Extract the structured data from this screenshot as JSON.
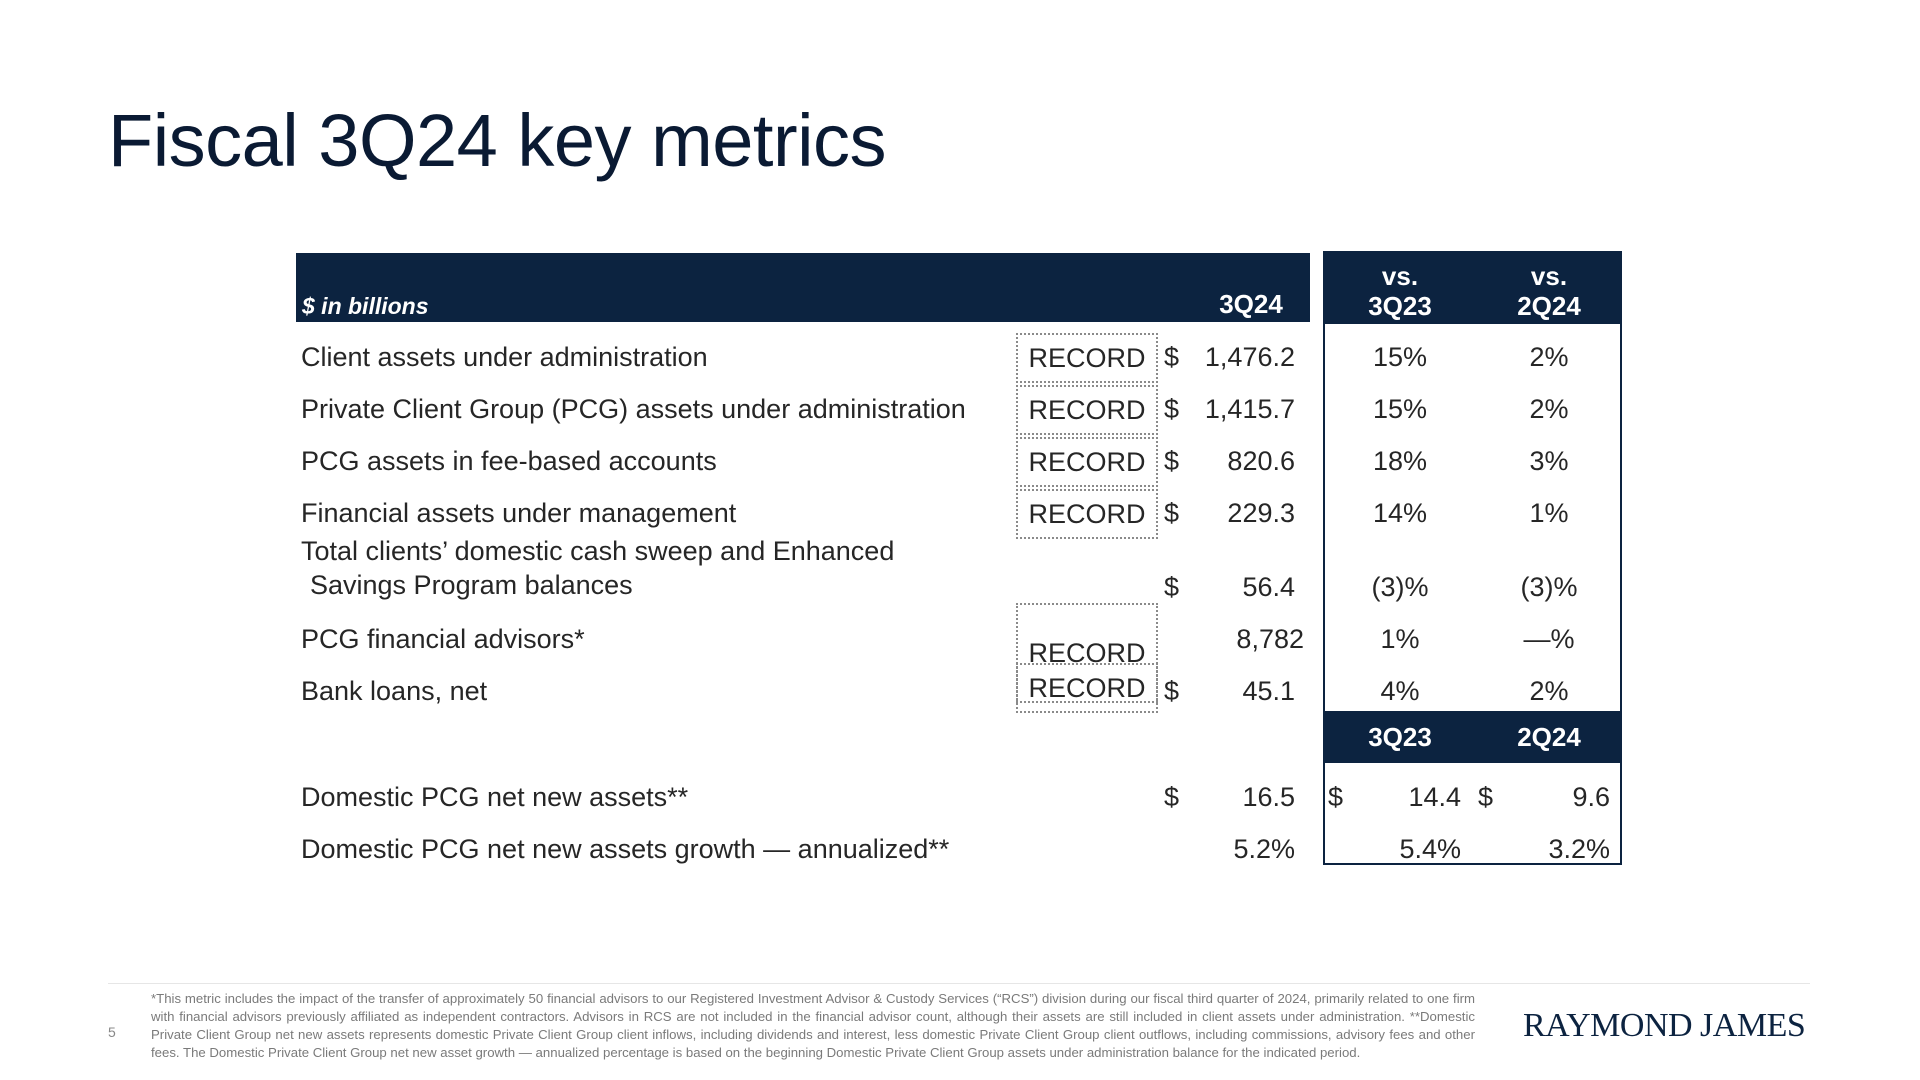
{
  "title": "Fiscal 3Q24 key metrics",
  "header": {
    "units": "$ in billions",
    "current": "3Q24",
    "vs1_line1": "vs.",
    "vs1_line2": "3Q23",
    "vs2_line1": "vs.",
    "vs2_line2": "2Q24",
    "period1": "3Q23",
    "period2": "2Q24"
  },
  "rows": [
    {
      "label": "Client assets under administration",
      "record": "RECORD",
      "dollar": "$",
      "value": "1,476.2",
      "vs_3q23": "15%",
      "vs_2q24": "2%"
    },
    {
      "label": "Private Client Group (PCG) assets under administration",
      "record": "RECORD",
      "dollar": "$",
      "value": "1,415.7",
      "vs_3q23": "15%",
      "vs_2q24": "2%"
    },
    {
      "label": "PCG assets in fee-based accounts",
      "record": "RECORD",
      "dollar": "$",
      "value": "820.6",
      "vs_3q23": "18%",
      "vs_2q24": "3%"
    },
    {
      "label": "Financial assets under management",
      "record": "RECORD",
      "dollar": "$",
      "value": "229.3",
      "vs_3q23": "14%",
      "vs_2q24": "1%"
    },
    {
      "label_line1": "Total clients’ domestic cash sweep and Enhanced",
      "label_line2": "Savings Program balances",
      "dollar": "$",
      "value": "56.4",
      "vs_3q23": "(3)%",
      "vs_2q24": "(3)%"
    },
    {
      "label": "PCG financial advisors*",
      "record": "RECORD",
      "value": "8,782",
      "vs_3q23": "1%",
      "vs_2q24": "—%"
    },
    {
      "label": "Bank loans, net",
      "record": "RECORD",
      "dollar": "$",
      "value": "45.1",
      "vs_3q23": "4%",
      "vs_2q24": "2%"
    }
  ],
  "net_new": [
    {
      "label": "Domestic PCG net new assets**",
      "dollar": "$",
      "value": "16.5",
      "p1_dollar": "$",
      "p1_value": "14.4",
      "p2_dollar": "$",
      "p2_value": "9.6"
    },
    {
      "label": "Domestic PCG net new assets growth — annualized**",
      "value": "5.2%",
      "p1_value": "5.4%",
      "p2_value": "3.2%"
    }
  ],
  "footer": {
    "page": "5",
    "footnote": "*This metric includes the impact of the transfer of approximately 50 financial advisors to our Registered Investment Advisor & Custody Services (“RCS”) division during our fiscal third quarter of 2024, primarily related to one firm with financial advisors previously affiliated as independent contractors. Advisors in RCS are not included in the financial advisor count, although their assets are still included in client assets under administration. **Domestic Private Client Group net new assets represents domestic Private Client Group client inflows, including dividends and interest, less domestic Private Client Group client outflows, including commissions, advisory fees and other fees. The Domestic Private Client Group net new asset growth — annualized percentage is based on the beginning Domestic Private Client Group assets under administration balance for the indicated period.",
    "logo": "RAYMOND JAMES"
  }
}
